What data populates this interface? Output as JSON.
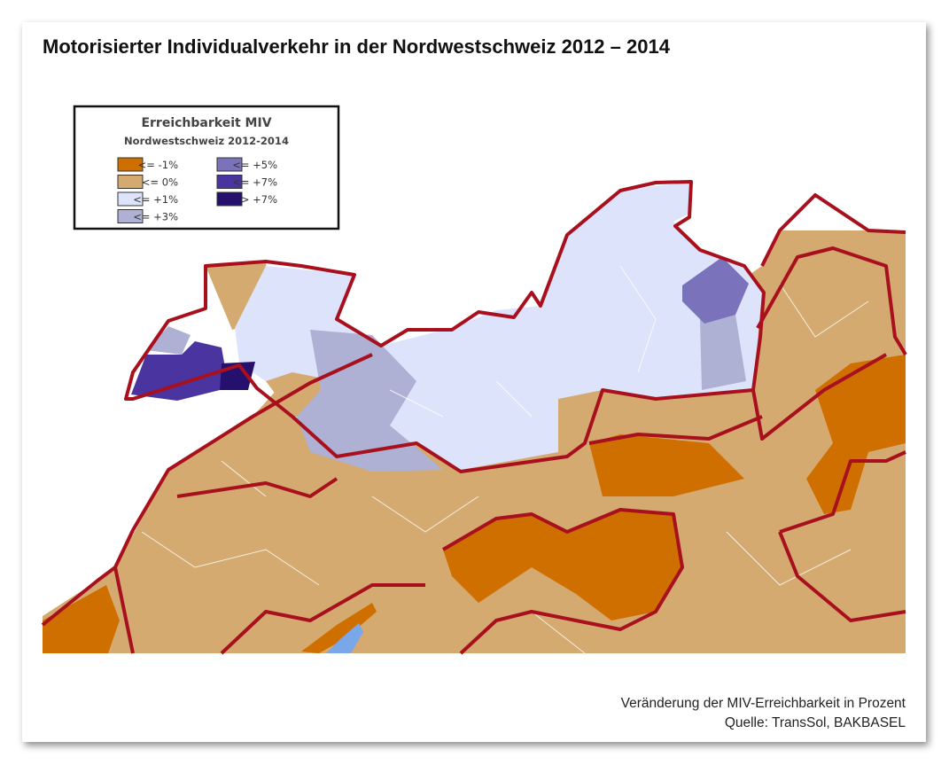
{
  "title": "Motorisierter Individualverkehr in der Nordwestschweiz 2012 – 2014",
  "legend": {
    "title": "Erreichbarkeit MIV",
    "subtitle": "Nordwestschweiz 2012-2014",
    "items": [
      {
        "label": "<= -1%",
        "color": "#cf6f00"
      },
      {
        "label": "<= 0%",
        "color": "#d4aa70"
      },
      {
        "label": "<= +1%",
        "color": "#dde3fa"
      },
      {
        "label": "<= +3%",
        "color": "#aeb0d4"
      },
      {
        "label": "<= +5%",
        "color": "#7a72bb"
      },
      {
        "label": "<= +7%",
        "color": "#4a35a0"
      },
      {
        "label": "> +7%",
        "color": "#26106e"
      }
    ]
  },
  "footer": {
    "caption": "Veränderung der MIV-Erreichbarkeit in Prozent",
    "source": "Quelle: TransSol, BAKBASEL"
  }
}
